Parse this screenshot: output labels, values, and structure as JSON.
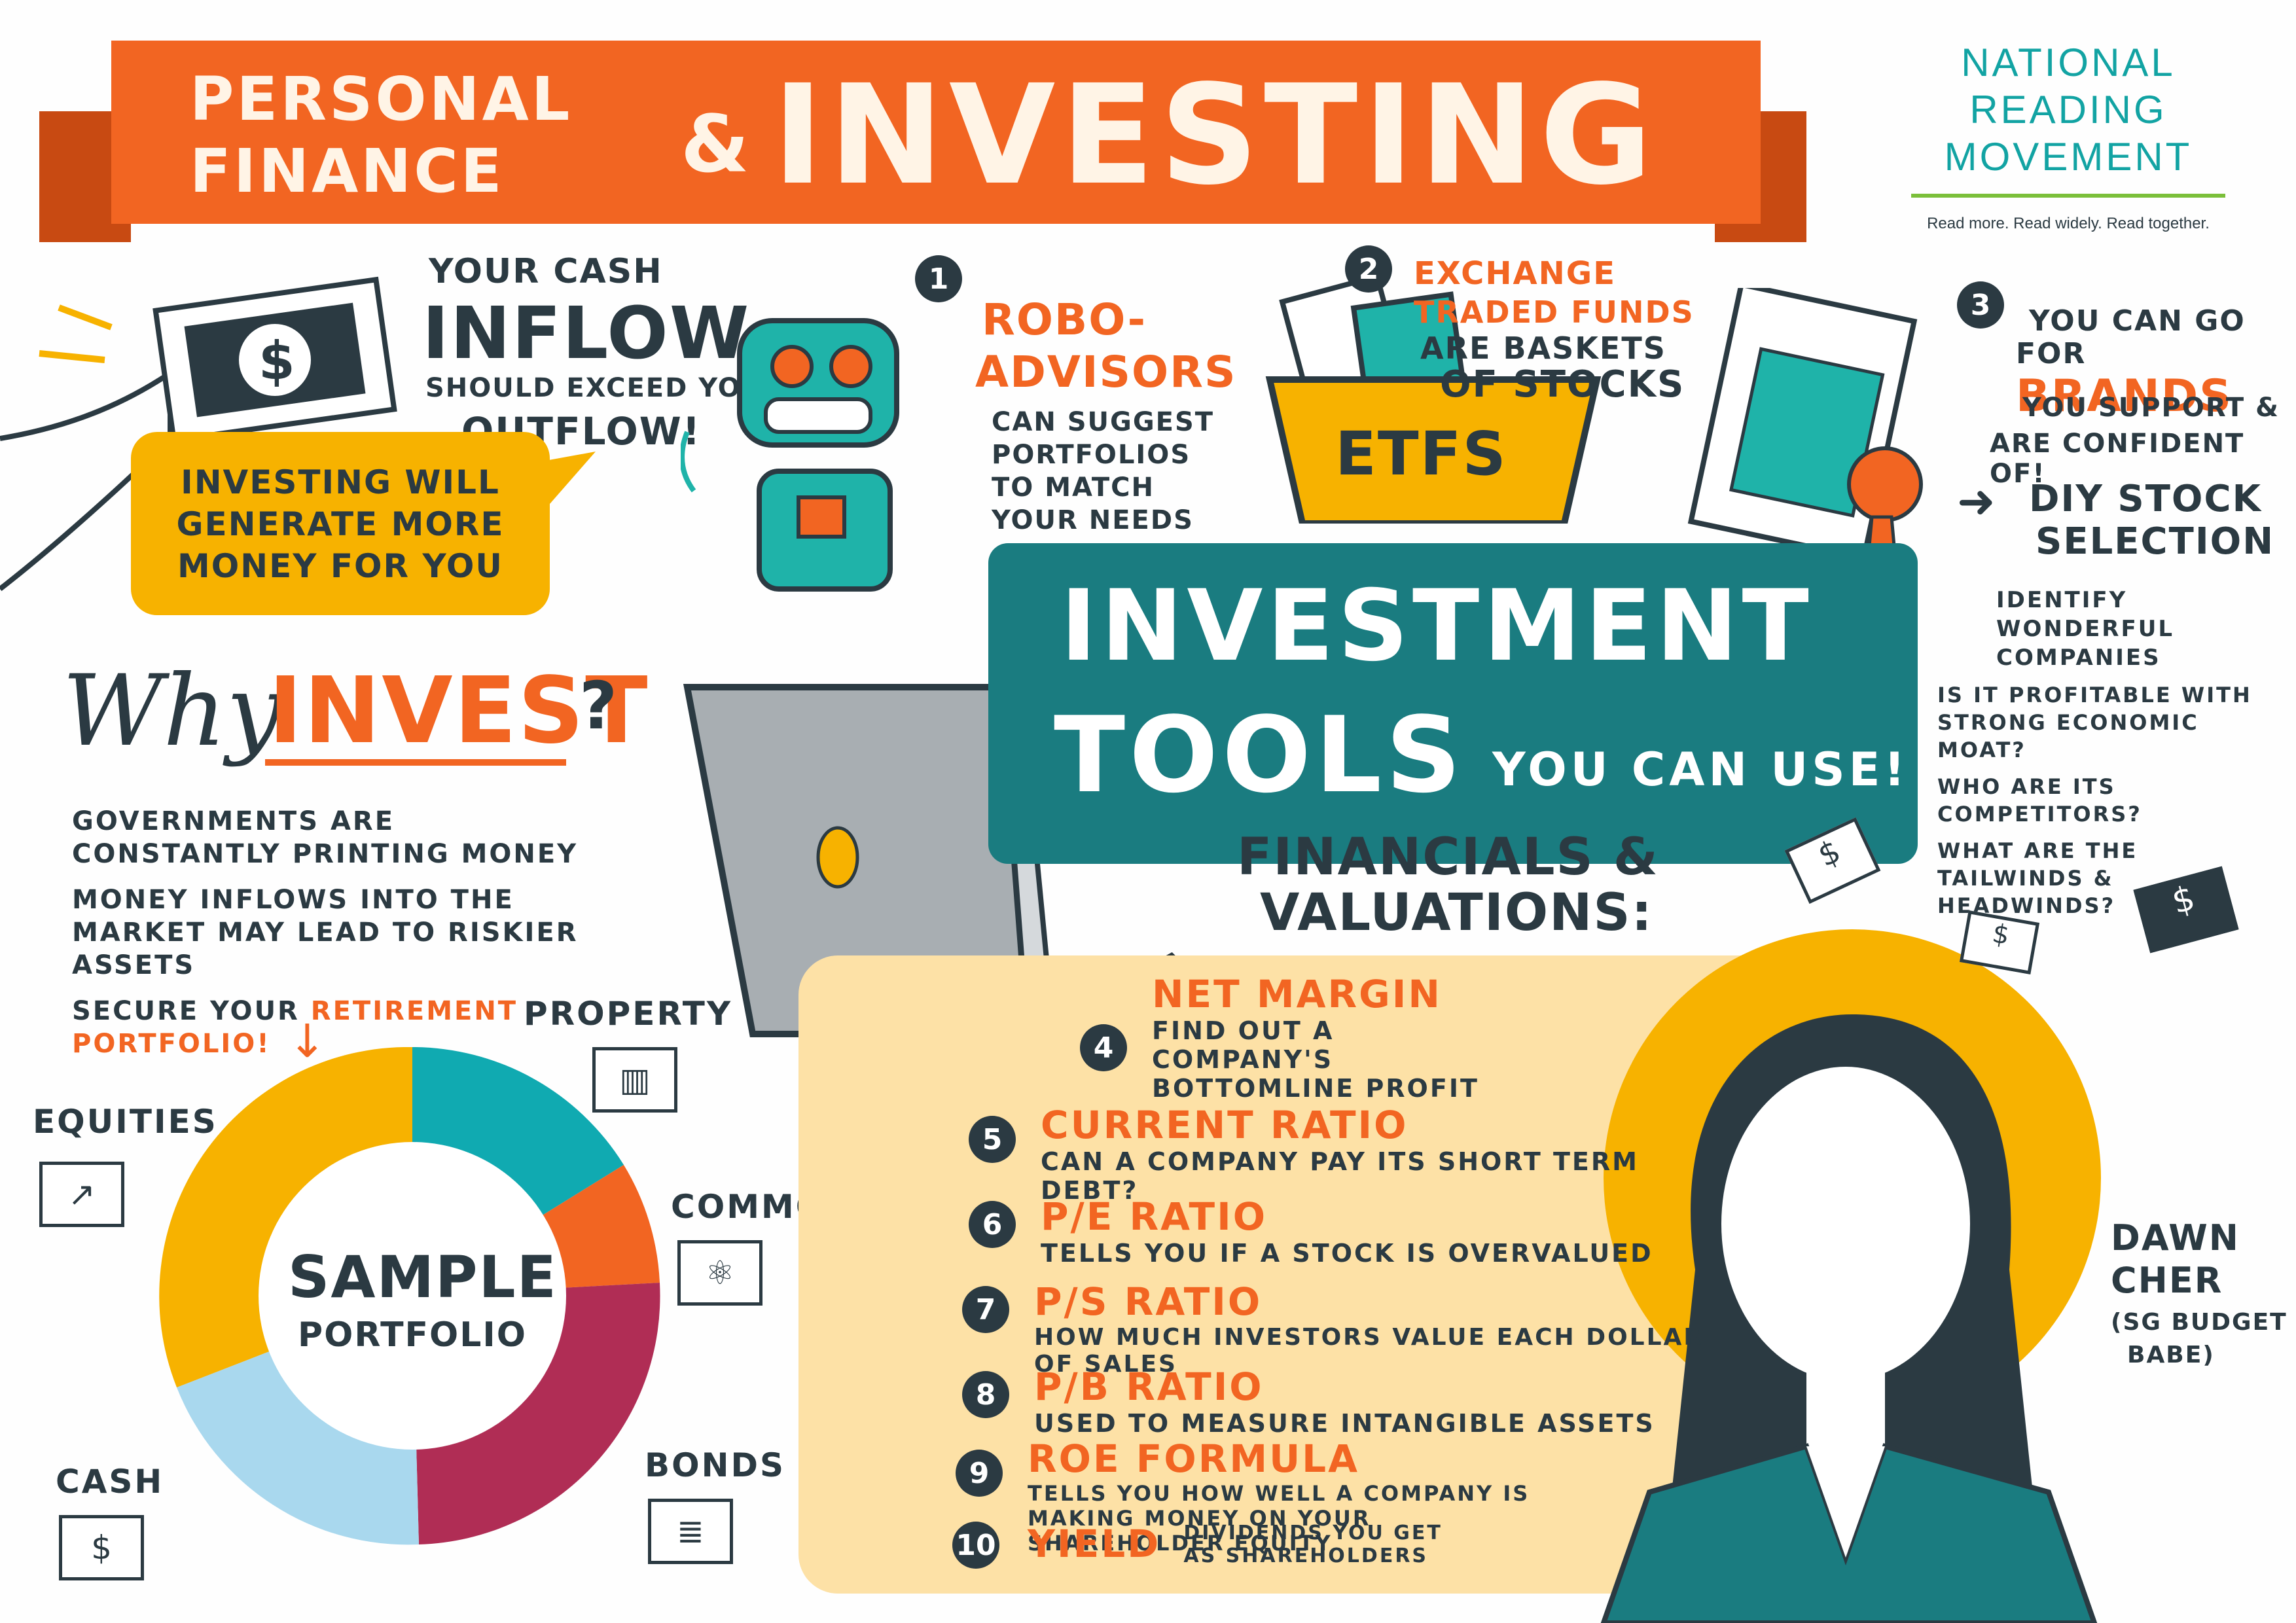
{
  "banner": {
    "line1": "PERSONAL",
    "line2": "FINANCE",
    "amp": "&",
    "big": "INVESTING"
  },
  "logo": {
    "line1": "NATIONAL",
    "line2": "READING",
    "line3": "MOVEMENT",
    "tagline": "Read more. Read widely. Read together."
  },
  "cashflow": {
    "l1": "YOUR CASH",
    "l2": "INFLOW",
    "l3": "SHOULD EXCEED YOUR",
    "l4": "OUTFLOW!",
    "dollar": "$"
  },
  "bubble": {
    "l1": "INVESTING WILL",
    "l2": "GENERATE MORE",
    "l3": "MONEY FOR YOU"
  },
  "why": {
    "why": "Why",
    "invest": "INVEST",
    "q": "?",
    "bullets": [
      "GOVERNMENTS ARE CONSTANTLY PRINTING MONEY",
      "MONEY INFLOWS INTO THE MARKET MAY LEAD TO RISKIER ASSETS"
    ],
    "b3a": "SECURE YOUR",
    "b3b": "RETIREMENT",
    "b3c": "PORTFOLIO!"
  },
  "portfolio": {
    "title1": "SAMPLE",
    "title2": "PORTFOLIO",
    "labels": {
      "property": "PROPERTY",
      "equities": "EQUITIES",
      "commodities": "COMMODITIES",
      "cash": "CASH",
      "bonds": "BONDS"
    },
    "colors": {
      "equities": "#f7b200",
      "property": "#10aab1",
      "commodities": "#f26522",
      "bonds": "#b02d55",
      "cash": "#a9d8ee"
    }
  },
  "tool1": {
    "num": "1",
    "title1": "ROBO-",
    "title2": "ADVISORS",
    "d1": "CAN SUGGEST",
    "d2": "PORTFOLIOS",
    "d3": "to MATCH",
    "d4": "YOUR NEEDS"
  },
  "tool2": {
    "num": "2",
    "t1": "EXCHANGE",
    "t2": "TRADED FUNDS",
    "d1": "ARE BASKETS",
    "d2": "of STOCKS",
    "basket": "ETFs"
  },
  "tool3": {
    "num": "3",
    "l1": "YOU CAN GO",
    "l2a": "FOR",
    "l2b": "BRANDS",
    "l3": "YOU SUPPORT &",
    "l4": "ARE CONFIDENT OF!",
    "diy1": "DIY STOCK",
    "diy2": "SELECTION",
    "arrow": "➜",
    "bullets": [
      "IDENTIFY WONDERFUL COMPANIES",
      "IS IT PROFITABLE WITH STRONG ECONOMIC MOAT?",
      "WHO ARE ITS COMPETITORS?",
      "WHAT ARE THE TAILWINDS & HEADWINDS?"
    ]
  },
  "tools": {
    "l1": "INVESTMENT",
    "l2": "TOOLS",
    "l3": "YOU CAN USE!"
  },
  "financials": {
    "l1": "FINANCIALS &",
    "l2": "VALUATIONS:"
  },
  "items": [
    {
      "num": "4",
      "title": "NET MARGIN",
      "desc": "FIND OUT A COMPANY'S BOTTOMLINE PROFIT"
    },
    {
      "num": "5",
      "title": "CURRENT RATIO",
      "desc": "CAN A COMPANY PAY ITS SHORT TERM DEBT?"
    },
    {
      "num": "6",
      "title": "P/E RATIO",
      "desc": "TELLS YOU IF A STOCK IS OVERVALUED"
    },
    {
      "num": "7",
      "title": "P/S RATIO",
      "desc": "HOW MUCH INVESTORS VALUE EACH DOLLAR OF SALES"
    },
    {
      "num": "8",
      "title": "P/B RATIO",
      "desc": "USED TO MEASURE INTANGIBLE ASSETS"
    },
    {
      "num": "9",
      "title": "ROE FORMULA",
      "desc": "TELLS YOU HOW WELL A COMPANY IS MAKING MONEY ON YOUR SHAREHOLDER EQUITY"
    },
    {
      "num": "10",
      "title": "YIELD",
      "desc": "DIVIDENDS YOU GET AS SHAREHOLDERS"
    }
  ],
  "person": {
    "n1": "DAWN",
    "n2": "CHER",
    "n3": "(SG BUDGET",
    "n4": "BABE)"
  },
  "money_symbol": "$"
}
